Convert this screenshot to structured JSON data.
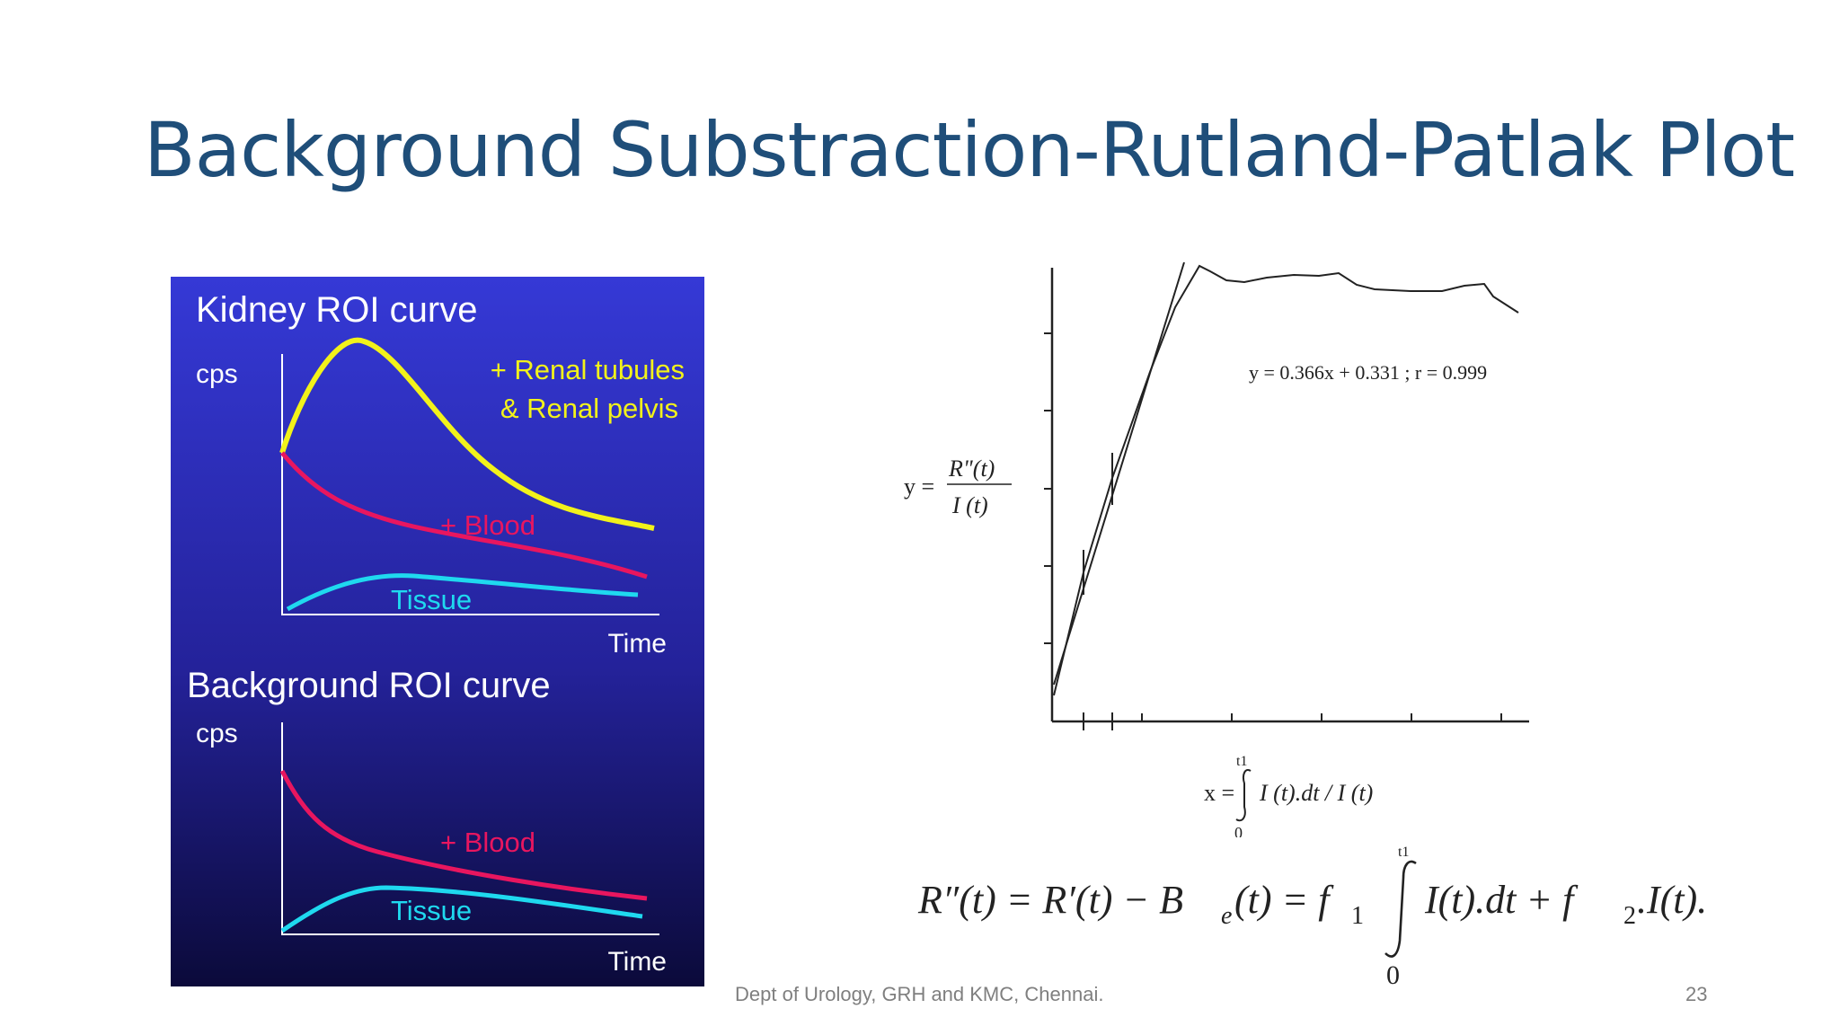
{
  "slide": {
    "title": "Background Substraction-Rutland-Patlak Plot",
    "footer_text": "Dept of Urology, GRH and KMC, Chennai.",
    "page_number": "23"
  },
  "roi_panel": {
    "kidney_title": "Kidney ROI curve",
    "kidney_ylabel": "cps",
    "kidney_xlabel": "Time",
    "kidney_label_tubules_1": "+ Renal tubules",
    "kidney_label_tubules_2": "& Renal pelvis",
    "kidney_label_blood": "+ Blood",
    "kidney_label_tissue": "Tissue",
    "background_title": "Background ROI curve",
    "background_ylabel": "cps",
    "background_xlabel": "Time",
    "background_label_blood": "+ Blood",
    "background_label_tissue": "Tissue",
    "colors": {
      "yellow": "#f2f21a",
      "blood": "#e8165f",
      "tissue": "#1fd9ef"
    }
  },
  "patlak_plot": {
    "regression_label": "y = 0.366x + 0.331 ; r = 0.999",
    "y_label_prefix": "y =",
    "y_numerator": "R\"(t)",
    "y_denominator": "I (t)",
    "x_label_prefix": "x =",
    "x_integral_upper": "t1",
    "x_integral_lower": "0",
    "x_integrand": "I (t).dt / I (t)"
  },
  "equation": {
    "lhs": "R″(t) = R′(t) − B",
    "sub_e": "e",
    "mid": "(t) = f",
    "sub_1": "1",
    "integral_upper": "t1",
    "integral_lower": "0",
    "rhs_1": "I(t).dt + f",
    "sub_2": "2",
    "rhs_2": ".I(t)."
  }
}
